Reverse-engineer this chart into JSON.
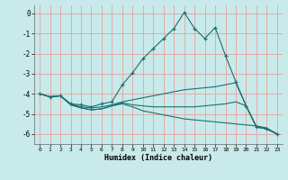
{
  "xlabel": "Humidex (Indice chaleur)",
  "background_color": "#c8eaea",
  "grid_color": "#e8a0a0",
  "line_color": "#1a7070",
  "xlim": [
    -0.5,
    23.5
  ],
  "ylim": [
    -6.5,
    0.4
  ],
  "xticks": [
    0,
    1,
    2,
    3,
    4,
    5,
    6,
    7,
    8,
    9,
    10,
    11,
    12,
    13,
    14,
    15,
    16,
    17,
    18,
    19,
    20,
    21,
    22,
    23
  ],
  "yticks": [
    0,
    -1,
    -2,
    -3,
    -4,
    -5,
    -6
  ],
  "lines": [
    {
      "x": [
        0,
        1,
        2,
        3,
        4,
        5,
        6,
        7,
        8,
        9,
        10,
        11,
        12,
        13,
        14,
        15,
        16,
        17,
        18,
        19,
        20,
        21,
        22,
        23
      ],
      "y": [
        -4.0,
        -4.15,
        -4.1,
        -4.5,
        -4.55,
        -4.65,
        -4.5,
        -4.4,
        -3.55,
        -2.95,
        -2.25,
        -1.75,
        -1.25,
        -0.75,
        0.05,
        -0.75,
        -1.25,
        -0.7,
        -2.1,
        -3.4,
        -4.6,
        -5.65,
        -5.75,
        -6.0
      ],
      "marker": true
    },
    {
      "x": [
        0,
        1,
        2,
        3,
        4,
        5,
        6,
        7,
        8,
        9,
        10,
        11,
        12,
        13,
        14,
        15,
        16,
        17,
        18,
        19,
        20,
        21,
        22,
        23
      ],
      "y": [
        -4.0,
        -4.15,
        -4.1,
        -4.5,
        -4.65,
        -4.7,
        -4.65,
        -4.55,
        -4.4,
        -4.3,
        -4.2,
        -4.1,
        -4.0,
        -3.9,
        -3.8,
        -3.75,
        -3.7,
        -3.65,
        -3.55,
        -3.45,
        -4.6,
        -5.65,
        -5.75,
        -6.0
      ],
      "marker": false
    },
    {
      "x": [
        0,
        1,
        2,
        3,
        4,
        5,
        6,
        7,
        8,
        9,
        10,
        11,
        12,
        13,
        14,
        15,
        16,
        17,
        18,
        19,
        20,
        21,
        22,
        23
      ],
      "y": [
        -4.0,
        -4.15,
        -4.1,
        -4.55,
        -4.7,
        -4.8,
        -4.75,
        -4.6,
        -4.5,
        -4.65,
        -4.85,
        -4.95,
        -5.05,
        -5.15,
        -5.25,
        -5.3,
        -5.35,
        -5.4,
        -5.45,
        -5.5,
        -5.55,
        -5.6,
        -5.7,
        -6.0
      ],
      "marker": false
    },
    {
      "x": [
        0,
        1,
        2,
        3,
        4,
        5,
        6,
        7,
        8,
        9,
        10,
        11,
        12,
        13,
        14,
        15,
        16,
        17,
        18,
        19,
        20,
        21,
        22,
        23
      ],
      "y": [
        -4.0,
        -4.15,
        -4.1,
        -4.55,
        -4.7,
        -4.8,
        -4.75,
        -4.6,
        -4.45,
        -4.55,
        -4.6,
        -4.65,
        -4.65,
        -4.65,
        -4.65,
        -4.65,
        -4.6,
        -4.55,
        -4.5,
        -4.4,
        -4.6,
        -5.65,
        -5.75,
        -6.0
      ],
      "marker": false
    }
  ]
}
